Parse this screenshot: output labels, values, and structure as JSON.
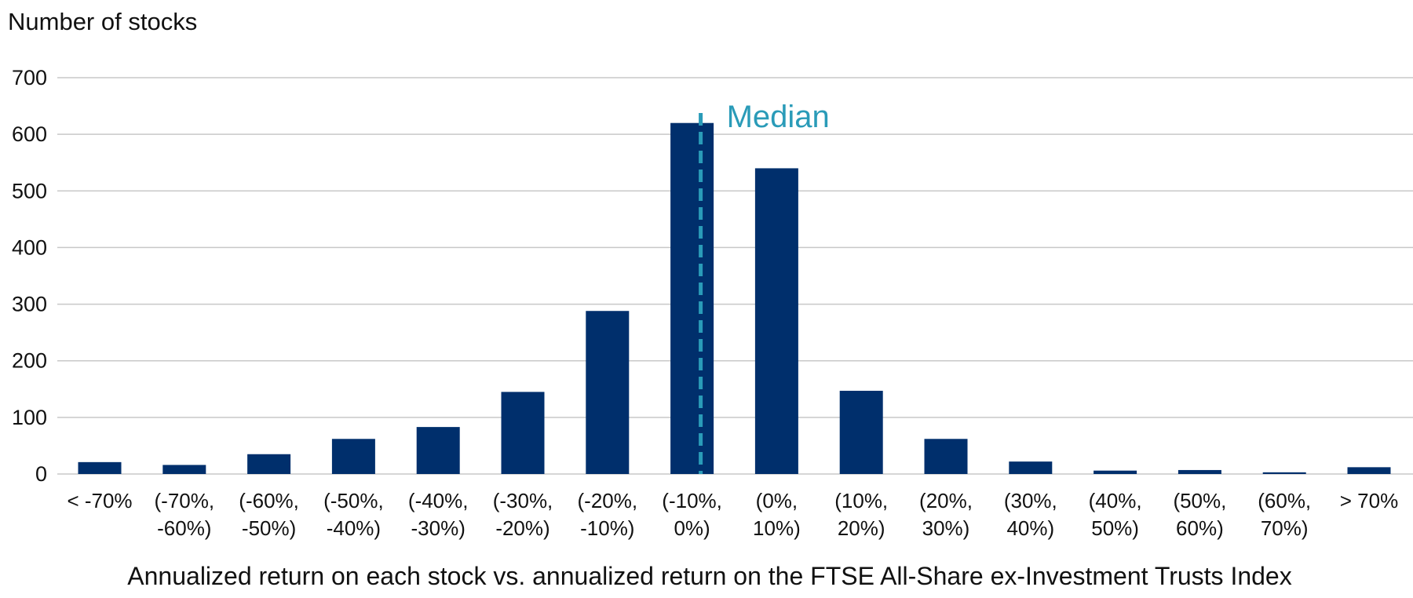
{
  "chart_data": {
    "type": "bar",
    "ylabel": "Number of stocks",
    "xlabel": "Annualized return on each stock vs. annualized return on the FTSE All-Share ex-Investment Trusts Index",
    "ylim": [
      0,
      700
    ],
    "yticks": [
      0,
      100,
      200,
      300,
      400,
      500,
      600,
      700
    ],
    "grid": true,
    "categories": [
      [
        "< -70%"
      ],
      [
        "(-70%,",
        "-60%)"
      ],
      [
        "(-60%,",
        "-50%)"
      ],
      [
        "(-50%,",
        "-40%)"
      ],
      [
        "(-40%,",
        "-30%)"
      ],
      [
        "(-30%,",
        "-20%)"
      ],
      [
        "(-20%,",
        "-10%)"
      ],
      [
        "(-10%,",
        "0%)"
      ],
      [
        "(0%,",
        "10%)"
      ],
      [
        "(10%,",
        "20%)"
      ],
      [
        "(20%,",
        "30%)"
      ],
      [
        "(30%,",
        "40%)"
      ],
      [
        "(40%,",
        "50%)"
      ],
      [
        "(50%,",
        "60%)"
      ],
      [
        "(60%,",
        "70%)"
      ],
      [
        "> 70%"
      ]
    ],
    "values": [
      21,
      16,
      35,
      62,
      83,
      145,
      288,
      620,
      540,
      147,
      62,
      22,
      6,
      7,
      3,
      12
    ],
    "median": {
      "label": "Median",
      "category_index": 7,
      "position_in_bar": 0.7
    },
    "colors": {
      "bar": "#002F6C",
      "median": "#2A9BB8",
      "grid": "#C8C8C8",
      "text": "#111111"
    }
  }
}
